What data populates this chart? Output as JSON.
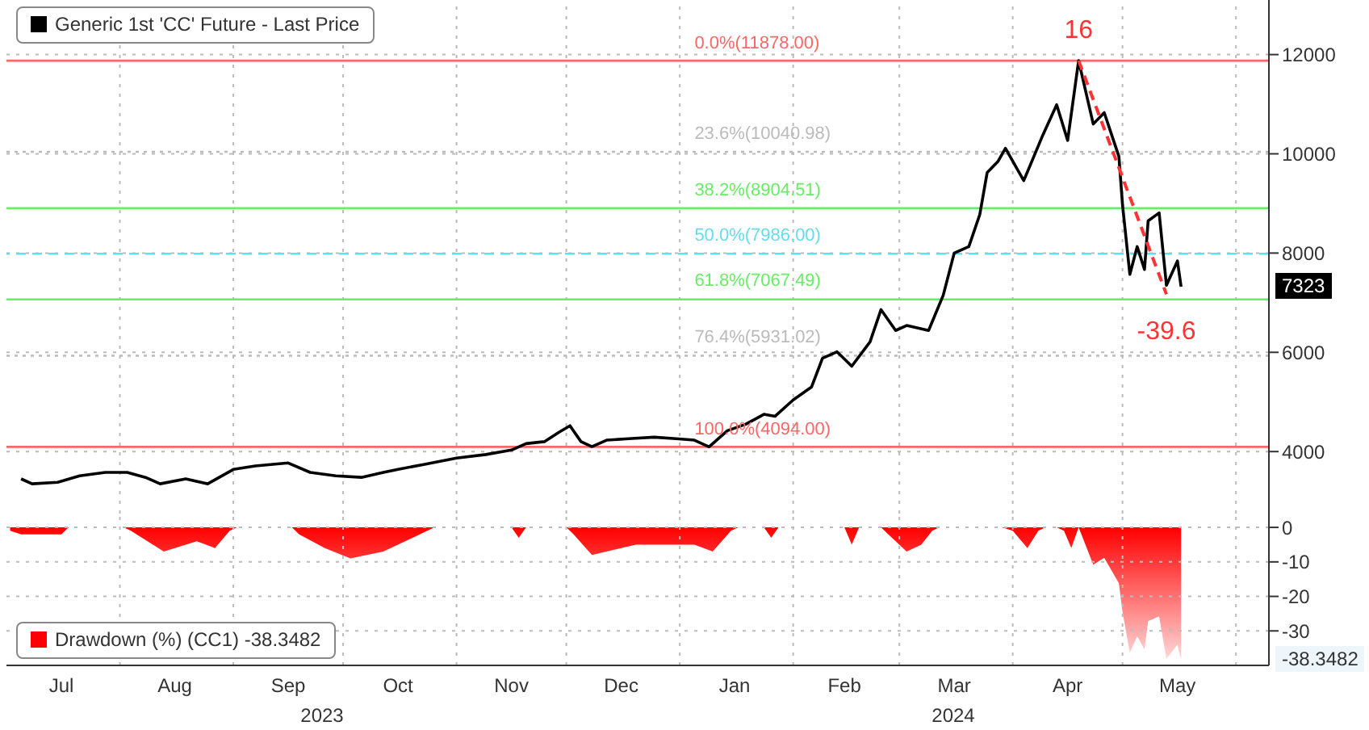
{
  "chart_data": [
    {
      "type": "line",
      "legend": "top left",
      "grid": true,
      "tick_labels": "y",
      "marker": "none",
      "xlim": [
        "2023-07-01",
        "2024-06-10"
      ],
      "xticks": [
        {
          "value": "2023-08-01",
          "label": null
        },
        {
          "value": "2023-09-01",
          "label": null
        },
        {
          "value": "2023-10-01",
          "label": null
        },
        {
          "value": "2023-11-01",
          "label": null
        },
        {
          "value": "2023-12-01",
          "label": null
        },
        {
          "value": "2024-01-01",
          "label": null
        },
        {
          "value": "2024-02-01",
          "label": null
        },
        {
          "value": "2024-03-01",
          "label": null
        },
        {
          "value": "2024-04-01",
          "label": null
        },
        {
          "value": "2024-05-01",
          "label": null
        },
        {
          "value": "2024-06-01",
          "label": null
        }
      ],
      "ylim": [
        2750,
        13100
      ],
      "yticks": [
        4000,
        6000,
        8000,
        10000,
        12000
      ],
      "series": [
        {
          "name": "Generic 1st 'CC' Future - Last Price",
          "color": "#000000",
          "line_style": "solid",
          "x": [
            "2023-07-05",
            "2023-07-08",
            "2023-07-15",
            "2023-07-21",
            "2023-07-28",
            "2023-08-03",
            "2023-08-08",
            "2023-08-12",
            "2023-08-19",
            "2023-08-25",
            "2023-09-01",
            "2023-09-07",
            "2023-09-16",
            "2023-09-22",
            "2023-09-29",
            "2023-10-06",
            "2023-10-12",
            "2023-10-16",
            "2023-10-23",
            "2023-11-01",
            "2023-11-09",
            "2023-11-16",
            "2023-11-20",
            "2023-11-25",
            "2023-11-29",
            "2023-12-02",
            "2023-12-05",
            "2023-12-08",
            "2023-12-12",
            "2023-12-18",
            "2023-12-25",
            "2023-12-31",
            "2024-01-05",
            "2024-01-09",
            "2024-01-14",
            "2024-01-19",
            "2024-01-24",
            "2024-01-27",
            "2024-02-01",
            "2024-02-06",
            "2024-02-09",
            "2024-02-13",
            "2024-02-17",
            "2024-02-22",
            "2024-02-25",
            "2024-02-29",
            "2024-03-03",
            "2024-03-09",
            "2024-03-13",
            "2024-03-16",
            "2024-03-20",
            "2024-03-23",
            "2024-03-25",
            "2024-03-28",
            "2024-03-30",
            "2024-04-04",
            "2024-04-09",
            "2024-04-13",
            "2024-04-16",
            "2024-04-19",
            "2024-04-23",
            "2024-04-26",
            "2024-04-30",
            "2024-05-01",
            "2024-05-03",
            "2024-05-05",
            "2024-05-07",
            "2024-05-08",
            "2024-05-11",
            "2024-05-13",
            "2024-05-16",
            "2024-05-17"
          ],
          "values": [
            3450,
            3350,
            3380,
            3510,
            3580,
            3580,
            3480,
            3350,
            3450,
            3350,
            3640,
            3710,
            3770,
            3580,
            3510,
            3480,
            3580,
            3640,
            3740,
            3870,
            3940,
            4030,
            4160,
            4200,
            4390,
            4520,
            4200,
            4100,
            4230,
            4260,
            4290,
            4260,
            4230,
            4094,
            4420,
            4550,
            4750,
            4710,
            5040,
            5300,
            5880,
            6010,
            5720,
            6210,
            6860,
            6440,
            6540,
            6440,
            7150,
            8000,
            8130,
            8780,
            9620,
            9850,
            10110,
            9460,
            10340,
            10990,
            10270,
            11878,
            10600,
            10830,
            9950,
            8970,
            7570,
            8130,
            7670,
            8650,
            8810,
            7350,
            7840,
            7323
          ]
        },
        {
          "color": "#ff3333",
          "line_style": "dashed",
          "x": [
            "2024-04-19",
            "2024-05-13"
          ],
          "values": [
            11878,
            7170
          ]
        }
      ],
      "ref_lines": [
        {
          "axis": "y",
          "value": 11878,
          "label": "0.0%(11878.00)",
          "color": "#ff6666",
          "line_style": "solid"
        },
        {
          "axis": "y",
          "value": 10040.98,
          "label": "23.6%(10040.98)",
          "color": "#bbbbbb",
          "line_style": "dotted"
        },
        {
          "axis": "y",
          "value": 8904.51,
          "label": "38.2%(8904.51)",
          "color": "#66ee66",
          "line_style": "solid"
        },
        {
          "axis": "y",
          "value": 7986,
          "label": "50.0%(7986.00)",
          "color": "#66ddee",
          "line_style": "dashed"
        },
        {
          "axis": "y",
          "value": 7067.49,
          "label": "61.8%(7067.49)",
          "color": "#66ee66",
          "line_style": "solid"
        },
        {
          "axis": "y",
          "value": 5931.02,
          "label": "76.4%(5931.02)",
          "color": "#bbbbbb",
          "line_style": "dotted"
        },
        {
          "axis": "y",
          "value": 4094,
          "label": "100.0%(4094.00)",
          "color": "#ff6666",
          "line_style": "solid"
        }
      ],
      "annotations": [
        {
          "text": "16",
          "x": "2024-04-19",
          "y": 11878
        },
        {
          "text": "-39.6",
          "x": "2024-05-13",
          "y": 7170
        },
        "7323"
      ]
    },
    {
      "type": "area",
      "legend": "bottom left",
      "grid": true,
      "xlim": [
        "2023-07-01",
        "2024-06-10"
      ],
      "xticks": [
        {
          "value": "2023-07-16",
          "label": "Jul"
        },
        {
          "value": "2023-08-01",
          "label": null
        },
        {
          "value": "2023-08-16",
          "label": "Aug"
        },
        {
          "value": "2023-09-01",
          "label": null
        },
        {
          "value": "2023-09-16",
          "label": "Sep"
        },
        {
          "value": "2023-10-01",
          "label": null
        },
        {
          "value": "2023-10-16",
          "label": "Oct"
        },
        {
          "value": "2023-11-01",
          "label": null
        },
        {
          "value": "2023-11-16",
          "label": "Nov"
        },
        {
          "value": "2023-12-01",
          "label": null
        },
        {
          "value": "2023-12-16",
          "label": "Dec"
        },
        {
          "value": "2024-01-01",
          "label": null
        },
        {
          "value": "2024-01-16",
          "label": "Jan"
        },
        {
          "value": "2024-02-01",
          "label": null
        },
        {
          "value": "2024-02-15",
          "label": "Feb"
        },
        {
          "value": "2024-03-01",
          "label": null
        },
        {
          "value": "2024-03-16",
          "label": "Mar"
        },
        {
          "value": "2024-04-01",
          "label": null
        },
        {
          "value": "2024-04-16",
          "label": "Apr"
        },
        {
          "value": "2024-05-01",
          "label": null
        },
        {
          "value": "2024-05-16",
          "label": "May"
        },
        {
          "value": "2024-06-01",
          "label": null
        }
      ],
      "ylim": [
        -40,
        4
      ],
      "yticks": [
        0,
        -10,
        -20,
        -30
      ],
      "series": [
        {
          "name": "Drawdown (%) (CC1) -38.3482",
          "color": "#ff0000",
          "x": [
            "2023-07-02",
            "2023-07-05",
            "2023-07-16",
            "2023-07-18",
            "2023-08-02",
            "2023-08-04",
            "2023-08-13",
            "2023-08-22",
            "2023-08-27",
            "2023-08-31",
            "2023-09-02",
            "2023-09-17",
            "2023-09-19",
            "2023-09-26",
            "2023-10-03",
            "2023-10-12",
            "2023-10-24",
            "2023-10-26",
            "2023-11-16",
            "2023-11-18",
            "2023-11-20",
            "2023-12-01",
            "2023-12-03",
            "2023-12-08",
            "2023-12-20",
            "2024-01-05",
            "2024-01-10",
            "2024-01-15",
            "2024-01-17",
            "2024-01-24",
            "2024-01-26",
            "2024-01-28",
            "2024-02-15",
            "2024-02-17",
            "2024-02-19",
            "2024-02-25",
            "2024-02-27",
            "2024-03-03",
            "2024-03-07",
            "2024-03-10",
            "2024-03-12",
            "2024-03-29",
            "2024-04-01",
            "2024-04-05",
            "2024-04-08",
            "2024-04-10",
            "2024-04-13",
            "2024-04-15",
            "2024-04-17",
            "2024-04-19",
            "2024-04-23",
            "2024-04-26",
            "2024-04-30",
            "2024-05-01",
            "2024-05-03",
            "2024-05-05",
            "2024-05-07",
            "2024-05-08",
            "2024-05-11",
            "2024-05-13",
            "2024-05-16",
            "2024-05-17"
          ],
          "values": [
            -1,
            -2,
            -2,
            0,
            0,
            -1,
            -7,
            -4,
            -6,
            -1,
            0,
            0,
            -2,
            -6,
            -9,
            -7,
            -1,
            0,
            0,
            -3,
            0,
            0,
            -2,
            -8,
            -5,
            -5,
            -7,
            -1,
            0,
            0,
            -3,
            0,
            0,
            -5,
            0,
            0,
            -2,
            -7,
            -5,
            -1,
            0,
            0,
            -1,
            -6,
            -1,
            0,
            0,
            -1,
            -6,
            0,
            -10.8,
            -8.8,
            -16.2,
            -24.5,
            -36.3,
            -31.6,
            -35.4,
            -27.2,
            -25.8,
            -38.1,
            -34.0,
            -38.3482
          ]
        }
      ],
      "annotations": [
        "-38.3482",
        "2023",
        "2024"
      ]
    }
  ]
}
